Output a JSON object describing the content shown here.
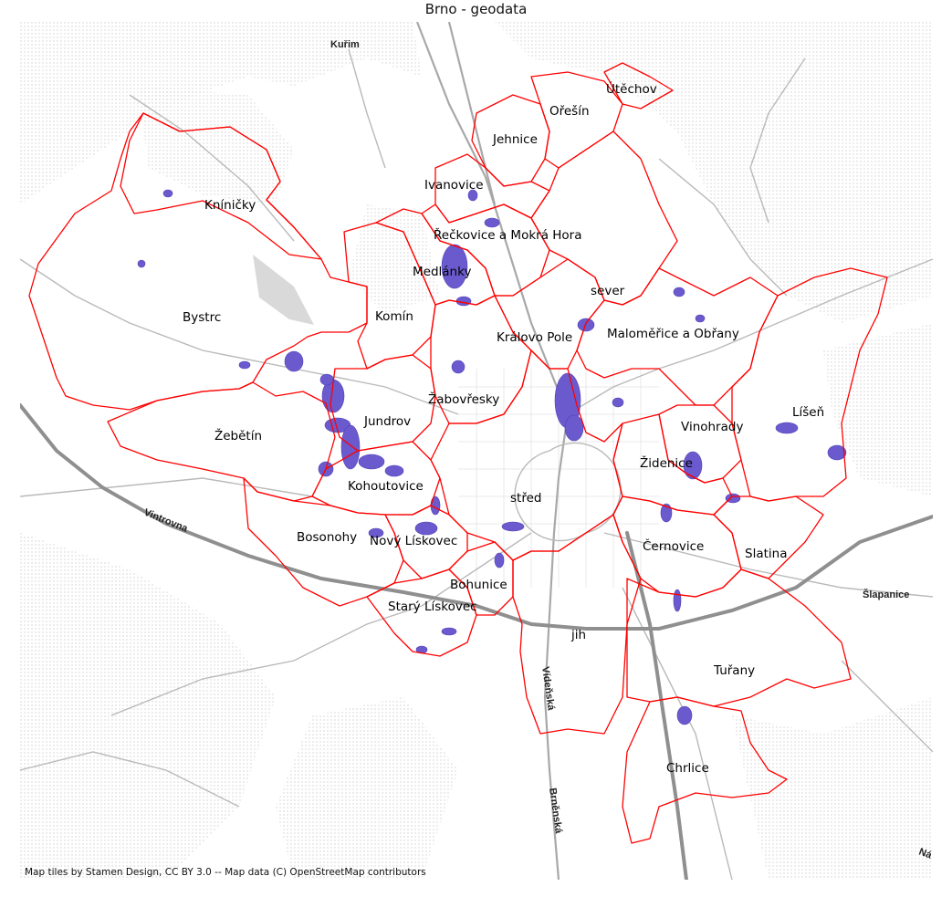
{
  "title": "Brno - geodata",
  "attribution": "Map tiles by Stamen Design, CC BY 3.0 -- Map data (C) OpenStreetMap contributors",
  "colors": {
    "boundary": "#ff0000",
    "water": "#6a5acd",
    "forest_hatch": "#d6d6d6",
    "roads": "#a8a8a8",
    "highway": "#8f8f8f",
    "background": "#ffffff"
  },
  "districts": [
    {
      "name": "Útěchov"
    },
    {
      "name": "Ořešín"
    },
    {
      "name": "Jehnice"
    },
    {
      "name": "Ivanovice"
    },
    {
      "name": "Kníničky"
    },
    {
      "name": "Řečkovice a Mokrá Hora"
    },
    {
      "name": "Medlánky"
    },
    {
      "name": "sever"
    },
    {
      "name": "Bystrc"
    },
    {
      "name": "Komín"
    },
    {
      "name": "Královo Pole"
    },
    {
      "name": "Maloměřice a Obřany"
    },
    {
      "name": "Žabovřesky"
    },
    {
      "name": "Líšeň"
    },
    {
      "name": "Jundrov"
    },
    {
      "name": "Vinohrady"
    },
    {
      "name": "Žebětín"
    },
    {
      "name": "Židenice"
    },
    {
      "name": "Kohoutovice"
    },
    {
      "name": "střed"
    },
    {
      "name": "Bosonohy"
    },
    {
      "name": "Nový Lískovec"
    },
    {
      "name": "Černovice"
    },
    {
      "name": "Slatina"
    },
    {
      "name": "Bohunice"
    },
    {
      "name": "Starý Lískovec"
    },
    {
      "name": "jih"
    },
    {
      "name": "Tuřany"
    },
    {
      "name": "Chrlice"
    }
  ],
  "basemap_labels": [
    "Kuřim",
    "Vintrovna",
    "Šlapanice",
    "Vídeňská",
    "Brněnská",
    "Ná"
  ]
}
